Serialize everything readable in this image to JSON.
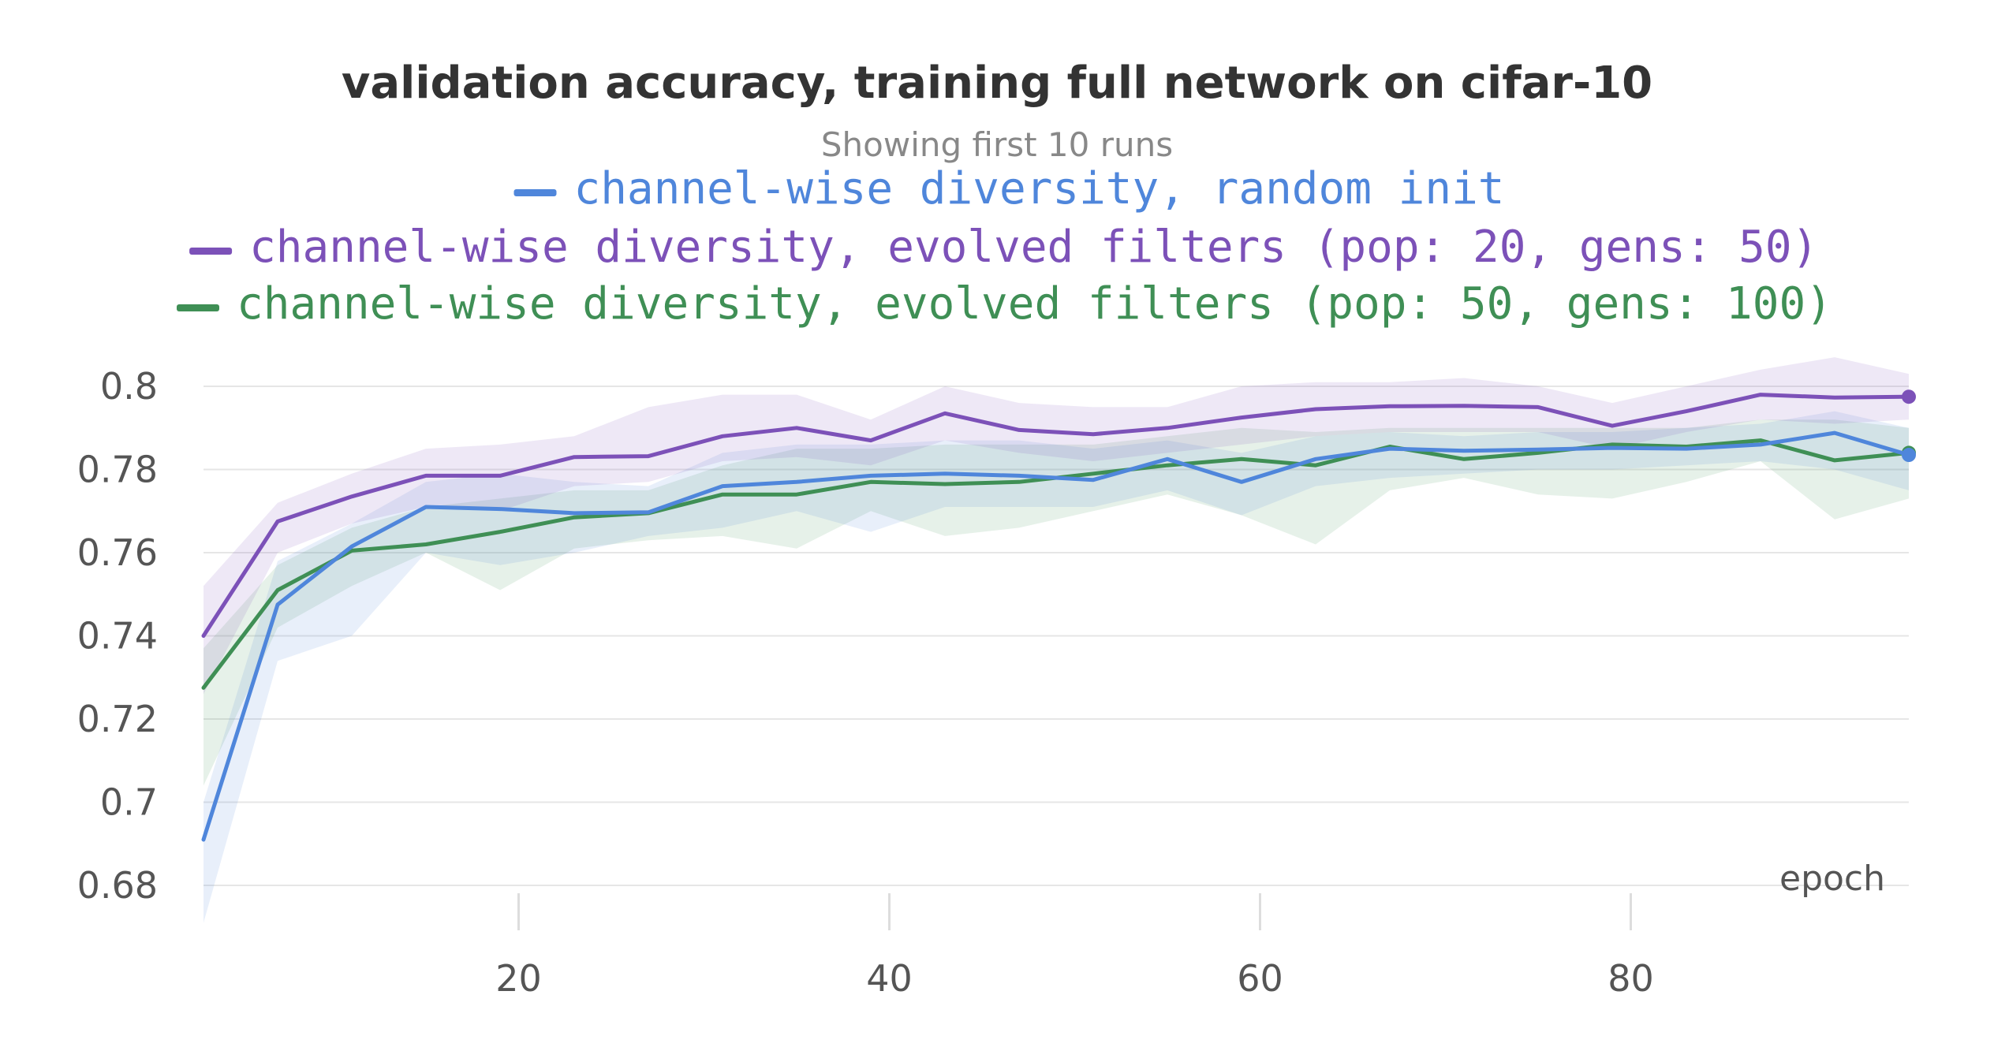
{
  "chart_data": {
    "type": "line",
    "title": "validation accuracy, training full network on cifar-10",
    "subtitle": "Showing first 10 runs",
    "xlabel": "epoch",
    "ylabel": "",
    "xlim": [
      3,
      95
    ],
    "ylim": [
      0.68,
      0.8
    ],
    "x_ticks": [
      20,
      40,
      60,
      80
    ],
    "y_ticks": [
      0.68,
      0.7,
      0.72,
      0.74,
      0.76,
      0.78,
      0.8
    ],
    "y_tick_labels": [
      "0.68",
      "0.7",
      "0.72",
      "0.74",
      "0.76",
      "0.78",
      "0.8"
    ],
    "grid": true,
    "legend_position": "top",
    "x": [
      3,
      7,
      11,
      15,
      19,
      23,
      27,
      31,
      35,
      39,
      43,
      47,
      51,
      55,
      59,
      63,
      67,
      71,
      75,
      79,
      83,
      87,
      91,
      95
    ],
    "series": [
      {
        "name": "channel-wise diversity, random init",
        "color": "#4f86db",
        "values": [
          0.691,
          0.7475,
          0.7615,
          0.771,
          0.7705,
          0.7695,
          0.7697,
          0.776,
          0.777,
          0.7785,
          0.779,
          0.7785,
          0.7775,
          0.7825,
          0.777,
          0.7825,
          0.785,
          0.7845,
          0.7848,
          0.7852,
          0.785,
          0.786,
          0.7888,
          0.7835
        ],
        "lower": [
          0.671,
          0.734,
          0.74,
          0.76,
          0.757,
          0.76,
          0.764,
          0.766,
          0.77,
          0.765,
          0.771,
          0.771,
          0.771,
          0.775,
          0.769,
          0.776,
          0.778,
          0.779,
          0.78,
          0.78,
          0.781,
          0.782,
          0.78,
          0.775
        ],
        "upper": [
          0.7,
          0.758,
          0.767,
          0.777,
          0.779,
          0.777,
          0.776,
          0.784,
          0.786,
          0.786,
          0.787,
          0.787,
          0.785,
          0.787,
          0.784,
          0.788,
          0.789,
          0.788,
          0.789,
          0.789,
          0.79,
          0.791,
          0.794,
          0.79
        ]
      },
      {
        "name": "channel-wise diversity, evolved filters (pop: 20, gens: 50)",
        "color": "#7c51b8",
        "values": [
          0.74,
          0.7675,
          0.7735,
          0.7785,
          0.7785,
          0.783,
          0.7832,
          0.788,
          0.79,
          0.787,
          0.7935,
          0.7895,
          0.7885,
          0.79,
          0.7925,
          0.7945,
          0.7952,
          0.7953,
          0.795,
          0.7905,
          0.794,
          0.798,
          0.7973,
          0.7975
        ],
        "lower": [
          0.726,
          0.76,
          0.767,
          0.771,
          0.77,
          0.776,
          0.777,
          0.782,
          0.783,
          0.781,
          0.787,
          0.784,
          0.782,
          0.784,
          0.786,
          0.788,
          0.789,
          0.789,
          0.789,
          0.785,
          0.789,
          0.792,
          0.791,
          0.792
        ],
        "upper": [
          0.752,
          0.772,
          0.779,
          0.785,
          0.786,
          0.788,
          0.795,
          0.798,
          0.798,
          0.792,
          0.8,
          0.796,
          0.795,
          0.795,
          0.8,
          0.801,
          0.801,
          0.802,
          0.8,
          0.796,
          0.8,
          0.804,
          0.807,
          0.803
        ]
      },
      {
        "name": "channel-wise diversity, evolved filters (pop: 50, gens: 100)",
        "color": "#3f8f55",
        "values": [
          0.7275,
          0.751,
          0.7605,
          0.762,
          0.765,
          0.7685,
          0.7695,
          0.774,
          0.774,
          0.777,
          0.7765,
          0.777,
          0.779,
          0.781,
          0.7825,
          0.781,
          0.7855,
          0.7825,
          0.784,
          0.786,
          0.7855,
          0.787,
          0.7822,
          0.784
        ],
        "lower": [
          0.704,
          0.742,
          0.752,
          0.76,
          0.751,
          0.761,
          0.763,
          0.764,
          0.761,
          0.77,
          0.764,
          0.766,
          0.77,
          0.774,
          0.769,
          0.762,
          0.775,
          0.778,
          0.774,
          0.773,
          0.777,
          0.782,
          0.768,
          0.773
        ],
        "upper": [
          0.737,
          0.757,
          0.766,
          0.771,
          0.773,
          0.775,
          0.775,
          0.781,
          0.785,
          0.785,
          0.786,
          0.786,
          0.786,
          0.788,
          0.79,
          0.789,
          0.79,
          0.79,
          0.79,
          0.79,
          0.79,
          0.792,
          0.792,
          0.79
        ]
      }
    ]
  }
}
